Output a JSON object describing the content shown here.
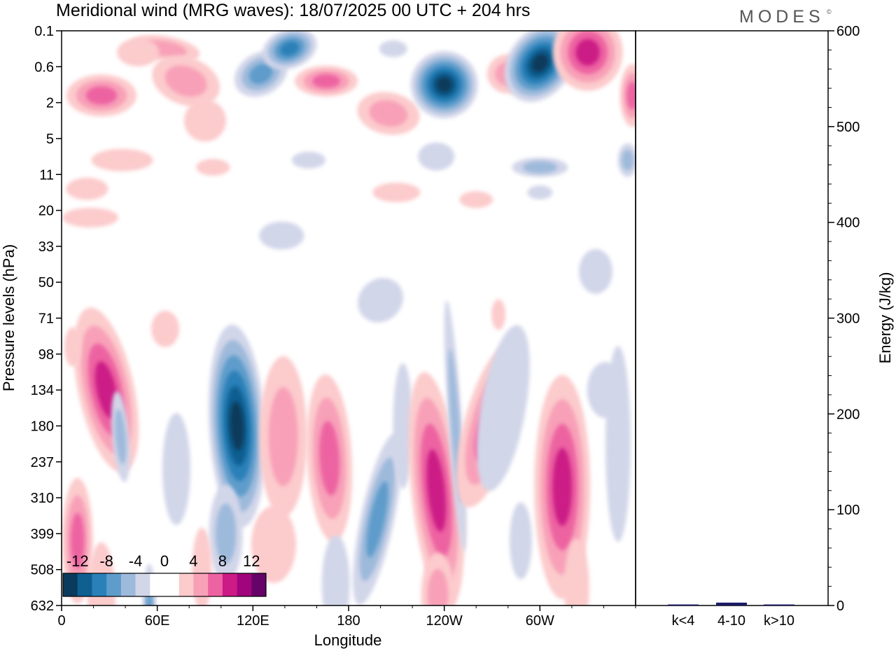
{
  "header": {
    "title": "Meridional wind (MRG waves):  18/07/2025  00 UTC  + 204 hrs",
    "brand": "MODES",
    "brand_mark": "©"
  },
  "chart_data": [
    {
      "type": "heatmap",
      "title": "Meridional wind (MRG waves):  18/07/2025  00 UTC  + 204 hrs",
      "xlabel": "Longitude",
      "ylabel": "Pressure levels (hPa)",
      "x_ticks": [
        "0",
        "60E",
        "120E",
        "180",
        "120W",
        "60W"
      ],
      "x_tick_degrees": [
        0,
        60,
        120,
        180,
        240,
        300
      ],
      "xlim": [
        0,
        360
      ],
      "y_ticks": [
        "0.1",
        "0.6",
        "2",
        "5",
        "11",
        "20",
        "33",
        "50",
        "71",
        "98",
        "134",
        "180",
        "237",
        "310",
        "399",
        "508",
        "632"
      ],
      "y_order": "top-to-bottom",
      "colorbar": {
        "labels": [
          "-12",
          "-8",
          "-4",
          "0",
          "4",
          "8",
          "12"
        ],
        "values": [
          -14,
          -12,
          -10,
          -8,
          -6,
          -4,
          -2,
          2,
          4,
          6,
          8,
          10,
          12,
          14
        ],
        "colors": [
          "#0b3b5c",
          "#0f5f91",
          "#2a80b8",
          "#5e9ccb",
          "#9ebadb",
          "#d2d6e9",
          "#ffffff",
          "#ffffff",
          "#fccbcc",
          "#f8a0b8",
          "#ed63a1",
          "#cc1a86",
          "#a0057c",
          "#650368"
        ],
        "placement": "bottom-left"
      },
      "features": [
        {
          "lon": 110,
          "level": "180",
          "sign": "negative",
          "peak": -14
        },
        {
          "lon": 238,
          "level": "310",
          "sign": "positive",
          "peak": 12
        },
        {
          "lon": 316,
          "level": "237",
          "sign": "positive",
          "peak": 12
        },
        {
          "lon": 27,
          "level": "134",
          "sign": "positive",
          "peak": 12
        },
        {
          "lon": 240,
          "level": "2",
          "sign": "negative",
          "peak": -12
        },
        {
          "lon": 297,
          "level": "0.6",
          "sign": "negative",
          "peak": -14
        },
        {
          "lon": 330,
          "level": "0.1",
          "sign": "positive",
          "peak": 12
        }
      ]
    },
    {
      "type": "bar",
      "ylabel": "Energy (J/kg)",
      "categories": [
        "k<4",
        "4-10",
        "k>10"
      ],
      "values": [
        1,
        3,
        0.5
      ],
      "ylim": [
        0,
        600
      ],
      "y_ticks": [
        "0",
        "100",
        "200",
        "300",
        "400",
        "500",
        "600"
      ],
      "bar_color": "#1a1a66"
    }
  ]
}
